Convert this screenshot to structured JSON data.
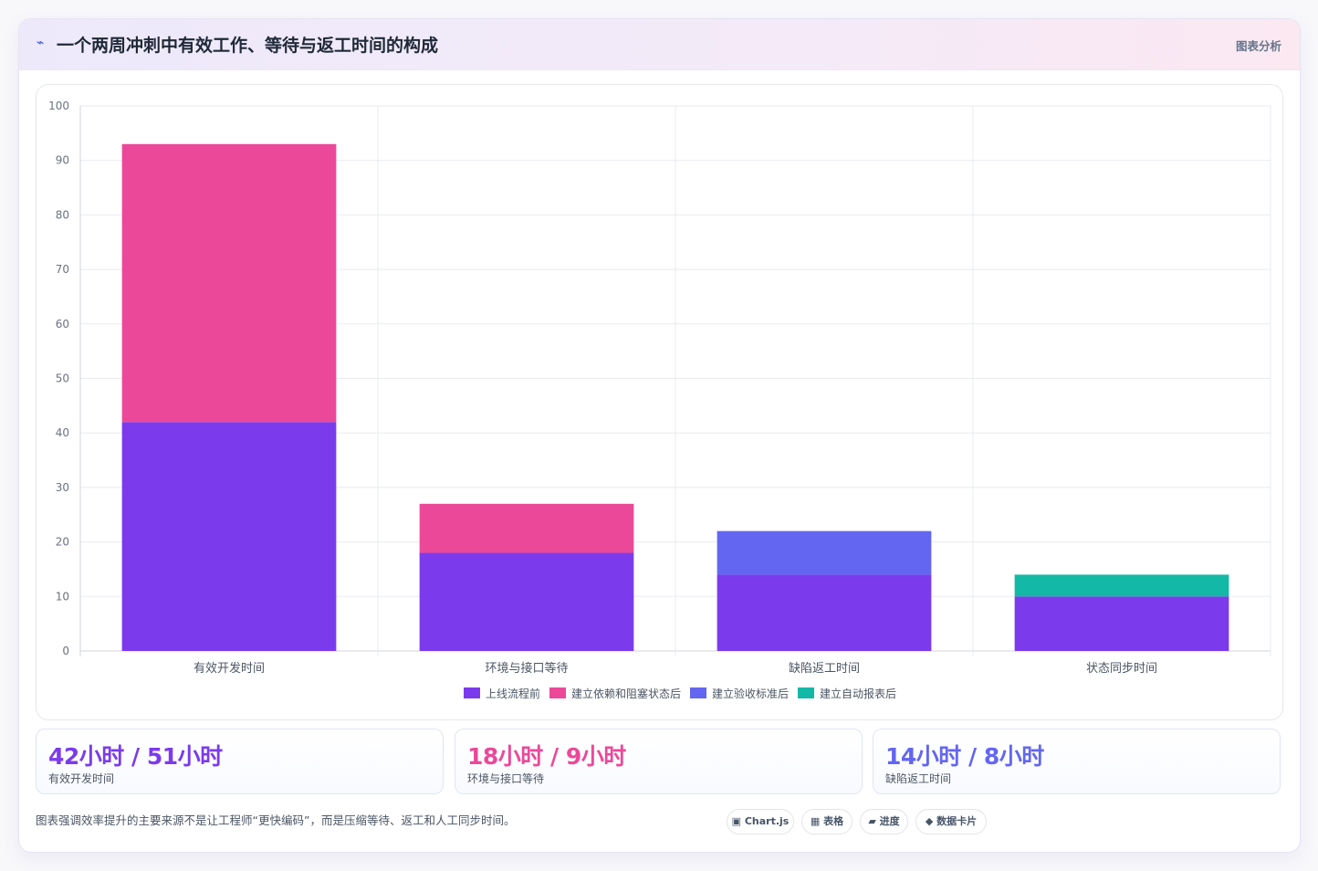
{
  "header": {
    "icon": "⌁",
    "title": "一个两周冲刺中有效工作、等待与返工时间的构成",
    "right_label": "图表分析"
  },
  "chart_data": {
    "type": "bar",
    "stacked": true,
    "categories": [
      "有效开发时间",
      "环境与接口等待",
      "缺陷返工时间",
      "状态同步时间"
    ],
    "series": [
      {
        "name": "上线流程前",
        "color": "#7c3aed",
        "values": [
          42,
          18,
          14,
          10
        ]
      },
      {
        "name": "建立依赖和阻塞状态后",
        "color": "#ec4899",
        "values": [
          51,
          9,
          0,
          0
        ]
      },
      {
        "name": "建立验收标准后",
        "color": "#6366f1",
        "values": [
          0,
          0,
          8,
          0
        ]
      },
      {
        "name": "建立自动报表后",
        "color": "#14b8a6",
        "values": [
          0,
          0,
          0,
          4
        ]
      }
    ],
    "y_ticks": [
      "0",
      "10",
      "20",
      "30",
      "40",
      "50",
      "60",
      "70",
      "80",
      "90",
      "100"
    ],
    "ylim": [
      0,
      100
    ],
    "grid": true,
    "legend_position": "bottom"
  },
  "stats": [
    {
      "value": "42小时 / 51小时",
      "label": "有效开发时间",
      "color": "#7c3aed"
    },
    {
      "value": "18小时 / 9小时",
      "label": "环境与接口等待",
      "color": "#ec4899"
    },
    {
      "value": "14小时 / 8小时",
      "label": "缺陷返工时间",
      "color": "#6366f1"
    }
  ],
  "footnote": "图表强调效率提升的主要来源不是让工程师“更快编码”，而是压缩等待、返工和人工同步时间。",
  "tags": [
    "▣ Chart.js",
    "▦ 表格",
    "▰ 进度",
    "◆ 数据卡片"
  ]
}
